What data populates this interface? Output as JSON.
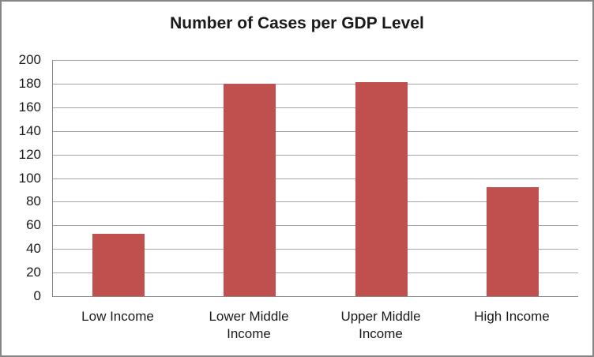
{
  "chart_data": {
    "type": "bar",
    "title": "Number of Cases per GDP Level",
    "categories": [
      "Low Income",
      "Lower Middle Income",
      "Upper Middle Income",
      "High Income"
    ],
    "values": [
      53,
      180,
      181,
      92
    ],
    "xlabel": "",
    "ylabel": "",
    "ylim": [
      0,
      200
    ],
    "ytick_step": 20,
    "yticks": [
      0,
      20,
      40,
      60,
      80,
      100,
      120,
      140,
      160,
      180,
      200
    ],
    "grid": true,
    "legend": "none",
    "colors": {
      "bar": "#C0504D",
      "gridline": "#A6A6A6",
      "axis": "#898989",
      "border": "#868686",
      "text": "#1A1A1A",
      "background": "#FFFFFF"
    }
  }
}
